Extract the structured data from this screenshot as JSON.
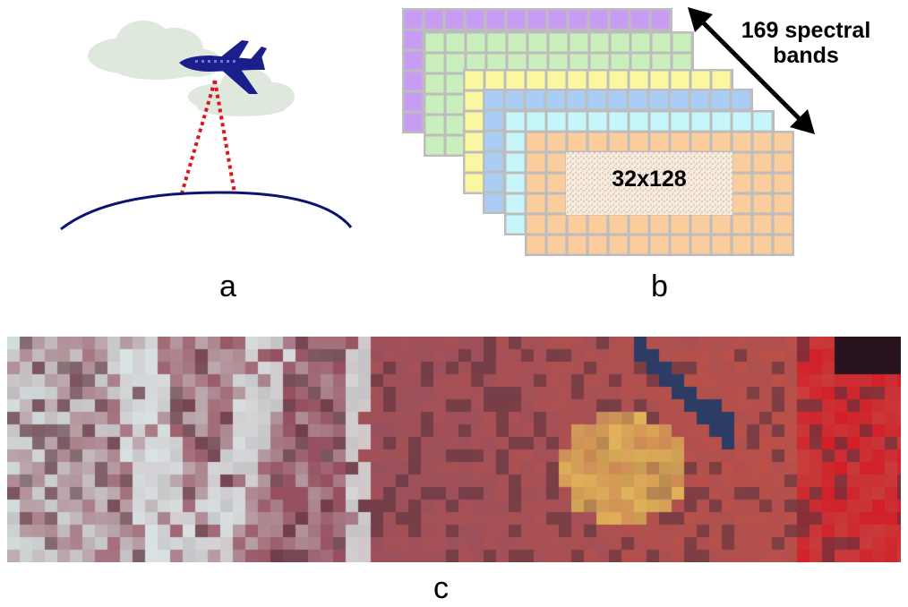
{
  "labels": {
    "a": "a",
    "b": "b",
    "c": "c"
  },
  "panel_a": {
    "elements": [
      "airplane-icon",
      "cloud-icon",
      "cloud-icon",
      "scan-lines",
      "earth-surface-arc"
    ],
    "colors": {
      "airplane": "#1a1f8c",
      "cloud": "#dfe8dd",
      "scan": "#e0141e",
      "earth": "#0c1372"
    }
  },
  "panel_b": {
    "band_count_label_line1": "169 spectral",
    "band_count_label_line2": "bands",
    "patch_label": "32x128",
    "layer_colors": [
      "#c79cf2",
      "#c9efbc",
      "#fbf7a1",
      "#a9cdf5",
      "#c6f6f9",
      "#fbcc9c"
    ],
    "grid_line_color": "#bdbdbd"
  },
  "panel_c": {
    "description_colors": {
      "left": "#d9e6e6",
      "middle": "#8e4a5c",
      "right": "#d91c2a",
      "highlight": "#e7c05a",
      "road": "#2b3f6b"
    }
  }
}
